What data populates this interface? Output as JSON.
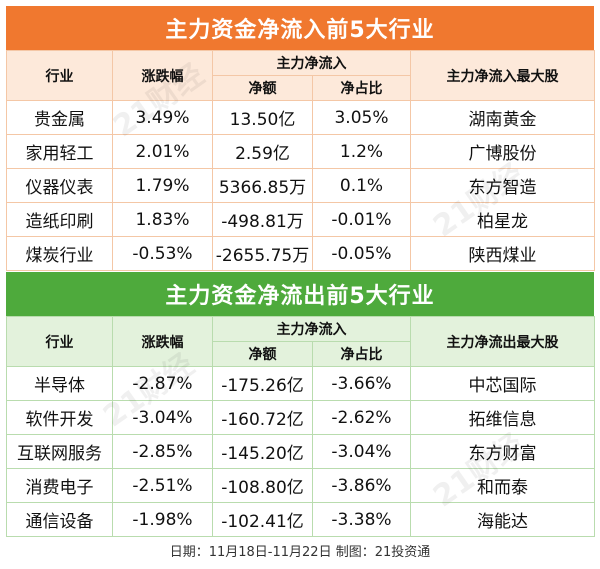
{
  "inflow": {
    "title": "主力资金净流入前5大行业",
    "headers": {
      "industry": "行业",
      "change": "涨跌幅",
      "netflow": "主力净流入",
      "amount": "净额",
      "ratio": "净占比",
      "top_stock": "主力净流入最大股"
    },
    "rows": [
      {
        "industry": "贵金属",
        "change": "3.49%",
        "amount": "13.50亿",
        "ratio": "3.05%",
        "stock": "湖南黄金"
      },
      {
        "industry": "家用轻工",
        "change": "2.01%",
        "amount": "2.59亿",
        "ratio": "1.2%",
        "stock": "广博股份"
      },
      {
        "industry": "仪器仪表",
        "change": "1.79%",
        "amount": "5366.85万",
        "ratio": "0.1%",
        "stock": "东方智造"
      },
      {
        "industry": "造纸印刷",
        "change": "1.83%",
        "amount": "-498.81万",
        "ratio": "-0.01%",
        "stock": "柏星龙"
      },
      {
        "industry": "煤炭行业",
        "change": "-0.53%",
        "amount": "-2655.75万",
        "ratio": "-0.05%",
        "stock": "陕西煤业"
      }
    ]
  },
  "outflow": {
    "title": "主力资金净流出前5大行业",
    "headers": {
      "industry": "行业",
      "change": "涨跌幅",
      "netflow": "主力净流入",
      "amount": "净额",
      "ratio": "净占比",
      "top_stock": "主力净流出最大股"
    },
    "rows": [
      {
        "industry": "半导体",
        "change": "-2.87%",
        "amount": "-175.26亿",
        "ratio": "-3.66%",
        "stock": "中芯国际"
      },
      {
        "industry": "软件开发",
        "change": "-3.04%",
        "amount": "-160.72亿",
        "ratio": "-2.62%",
        "stock": "拓维信息"
      },
      {
        "industry": "互联网服务",
        "change": "-2.85%",
        "amount": "-145.20亿",
        "ratio": "-3.04%",
        "stock": "东方财富"
      },
      {
        "industry": "消费电子",
        "change": "-2.51%",
        "amount": "-108.80亿",
        "ratio": "-3.86%",
        "stock": "和而泰"
      },
      {
        "industry": "通信设备",
        "change": "-1.98%",
        "amount": "-102.41亿",
        "ratio": "-3.38%",
        "stock": "海能达"
      }
    ]
  },
  "footer": "日期：11月18日-11月22日 制图：21投资通",
  "watermark": "21财经",
  "colors": {
    "inflow_band": "#f0782f",
    "outflow_band": "#4eaa3c"
  }
}
